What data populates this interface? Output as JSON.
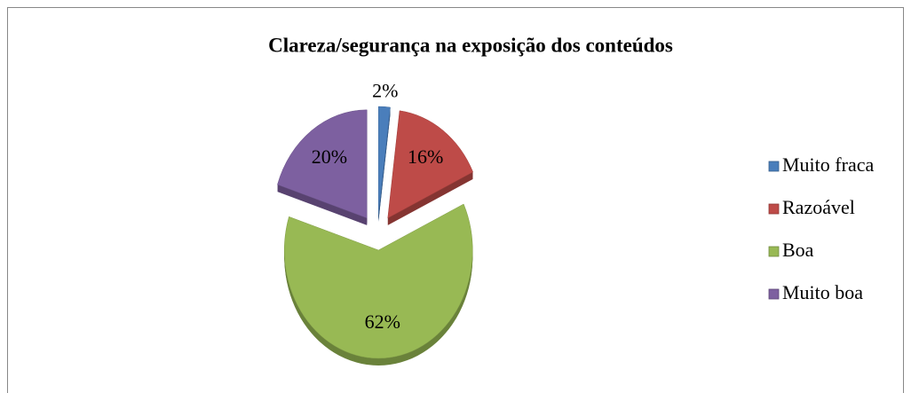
{
  "chart_data": {
    "type": "pie",
    "title": "Clareza/segurança na exposição dos conteúdos",
    "categories": [
      "Muito fraca",
      "Razoável",
      "Boa",
      "Muito boa"
    ],
    "values": [
      2,
      16,
      62,
      20
    ],
    "value_labels": [
      "2%",
      "16%",
      "62%",
      "20%"
    ],
    "colors": [
      "#4a7ebb",
      "#be4b48",
      "#98b954",
      "#7d60a0"
    ],
    "legend": "right"
  }
}
